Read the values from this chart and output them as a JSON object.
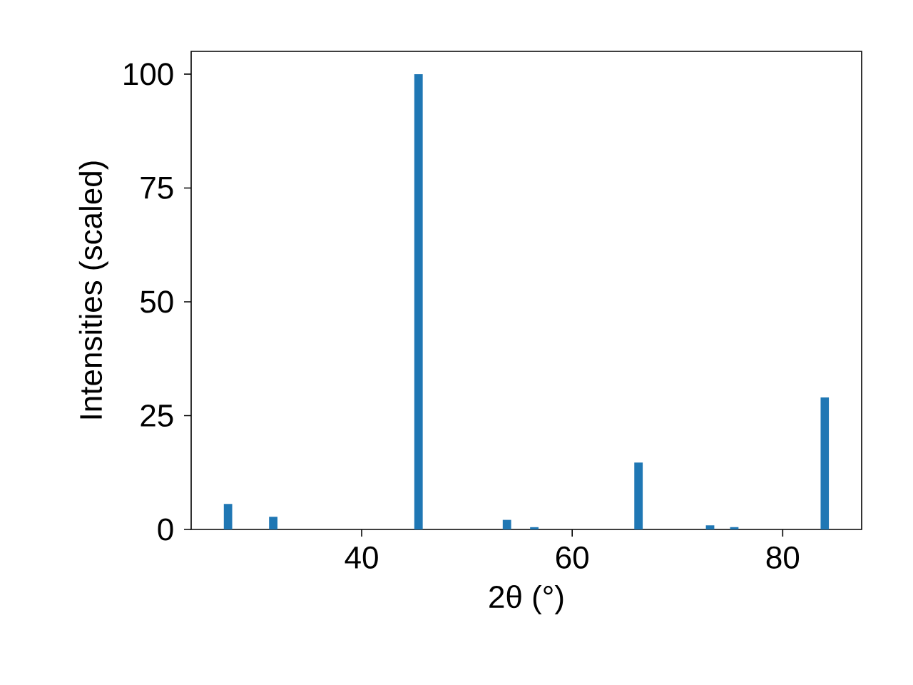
{
  "chart_data": {
    "type": "bar",
    "xlabel": "2θ (°)",
    "ylabel": "Intensities (scaled)",
    "x": [
      27.3,
      31.6,
      45.4,
      53.8,
      56.4,
      66.3,
      73.1,
      75.4,
      84.0
    ],
    "values": [
      5.6,
      2.8,
      100,
      2.1,
      0.5,
      14.7,
      0.9,
      0.5,
      29
    ],
    "color": "#1f77b4",
    "xlim": [
      23.8,
      87.5
    ],
    "ylim": [
      0,
      105
    ],
    "xticks": [
      40,
      60,
      80
    ],
    "yticks": [
      0,
      25,
      50,
      75,
      100
    ],
    "grid": false
  }
}
